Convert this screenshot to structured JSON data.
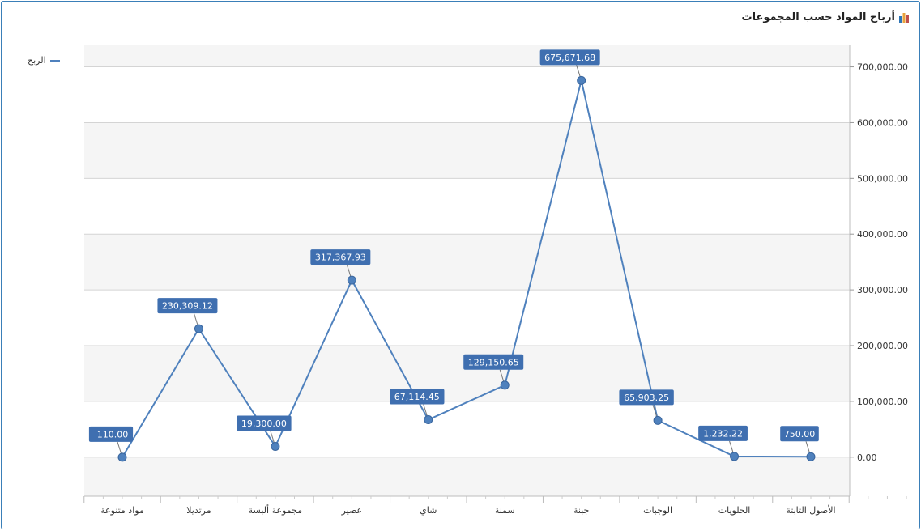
{
  "header": {
    "title": "أرباح المواد حسب المجموعات",
    "icon": "bar-chart-icon"
  },
  "chart_data": {
    "type": "line",
    "title": "أرباح المواد حسب المجموعات",
    "xlabel": "",
    "ylabel": "",
    "categories": [
      "مواد متنوعة",
      "مرتديلا",
      "مجموعة ألبسة",
      "عصير",
      "شاي",
      "سمنة",
      "جبنة",
      "الوجبات",
      "الحلويات",
      "الأصول الثابتة"
    ],
    "series": [
      {
        "name": "الربح",
        "values": [
          -110.0,
          230309.12,
          19300.0,
          317367.93,
          67114.45,
          129150.65,
          675671.68,
          65903.25,
          1232.22,
          750.0
        ],
        "labels": [
          "-110.00",
          "230,309.12",
          "19,300.00",
          "317,367.93",
          "67,114.45",
          "129,150.65",
          "675,671.68",
          "65,903.25",
          "1,232.22",
          "750.00"
        ]
      }
    ],
    "ylim": [
      -70000,
      740000
    ],
    "yticks": [
      0,
      100000,
      200000,
      300000,
      400000,
      500000,
      600000,
      700000
    ],
    "ytick_labels": [
      "0.00",
      "100,000.00",
      "200,000.00",
      "300,000.00",
      "400,000.00",
      "500,000.00",
      "600,000.00",
      "700,000.00"
    ],
    "y_axis_side": "right",
    "grid": true,
    "banded_background": true,
    "legend_position": "top-left",
    "colors": {
      "line": "#4f81bd",
      "marker": "#4f81bd",
      "label_bg": "#3f6fb0",
      "band": "#f5f5f5",
      "grid": "#d4d4d4"
    }
  }
}
